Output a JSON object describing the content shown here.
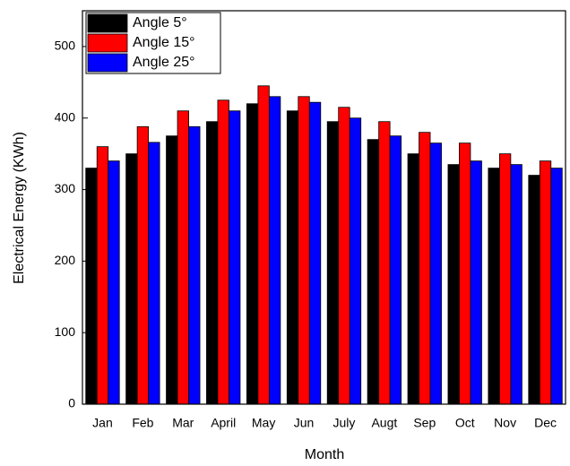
{
  "chart_data": {
    "type": "bar",
    "x_label": "Month",
    "y_label": "Electrical Energy (KWh)",
    "categories": [
      "Jan",
      "Feb",
      "Mar",
      "April",
      "May",
      "Jun",
      "July",
      "Augt",
      "Sep",
      "Oct",
      "Nov",
      "Dec"
    ],
    "series": [
      {
        "name": "Angle 5°",
        "color": "#000000",
        "values": [
          330,
          350,
          375,
          395,
          420,
          410,
          395,
          370,
          350,
          335,
          330,
          320
        ]
      },
      {
        "name": "Angle 15°",
        "color": "#ff0000",
        "values": [
          360,
          388,
          410,
          425,
          445,
          430,
          415,
          395,
          380,
          365,
          350,
          340
        ]
      },
      {
        "name": "Angle 25°",
        "color": "#0000ff",
        "values": [
          340,
          366,
          388,
          410,
          430,
          422,
          400,
          375,
          365,
          340,
          335,
          330
        ]
      }
    ],
    "ylim": [
      0,
      550
    ],
    "yticks": [
      0,
      100,
      200,
      300,
      400,
      500
    ],
    "grid": false,
    "legend": "upper left"
  }
}
